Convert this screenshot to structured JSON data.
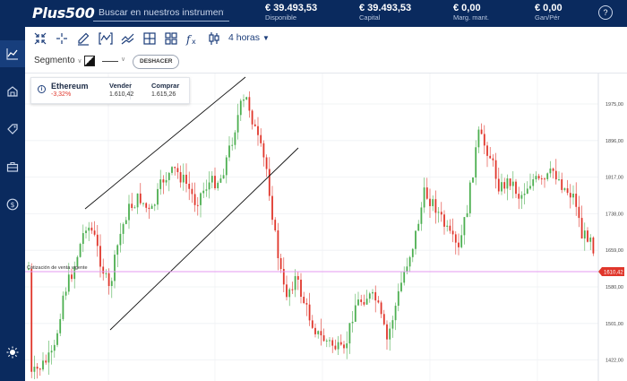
{
  "app": {
    "logo": "Plus500"
  },
  "search": {
    "placeholder": "Buscar en nuestros instrumentos"
  },
  "stats": [
    {
      "value": "€ 39.493,53",
      "label": "Disponible"
    },
    {
      "value": "€ 39.493,53",
      "label": "Capital"
    },
    {
      "value": "€ 0,00",
      "label": "Marg. mant."
    },
    {
      "value": "€ 0,00",
      "label": "Gan/Pér"
    }
  ],
  "help_icon": "?",
  "sidebar": {
    "items": [
      "chart-icon",
      "tag-house-icon",
      "tag-icon",
      "briefcase-icon",
      "dollar-icon"
    ],
    "active": 0,
    "bottom": "sun-icon"
  },
  "toolbar": {
    "icons": [
      "shrink-icon",
      "crosshair-icon",
      "pencil-icon",
      "wave-box-icon",
      "trend-lines-icon",
      "layout-icon",
      "grid-icon",
      "function-icon",
      "candles-icon"
    ],
    "timeframe": "4 horas",
    "segment_label": "Segmento",
    "undo_label": "DESHACER"
  },
  "instrument": {
    "name": "Ethereum",
    "change": "-3,32%",
    "sell_label": "Vender",
    "sell": "1.610,42",
    "buy_label": "Comprar",
    "buy": "1.615,26"
  },
  "chart_data": {
    "type": "candlestick",
    "price_ticks": [
      "1975,00",
      "1896,00",
      "1817,00",
      "1738,00",
      "1659,00",
      "1580,00",
      "1501,00",
      "1422,00"
    ],
    "current_price": "1610,42",
    "current_price_label": "Cotización de venta vigente",
    "colors": {
      "up": "#4caf50",
      "down": "#e0362b",
      "price_line": "#e59af2",
      "trend": "#111111"
    }
  }
}
